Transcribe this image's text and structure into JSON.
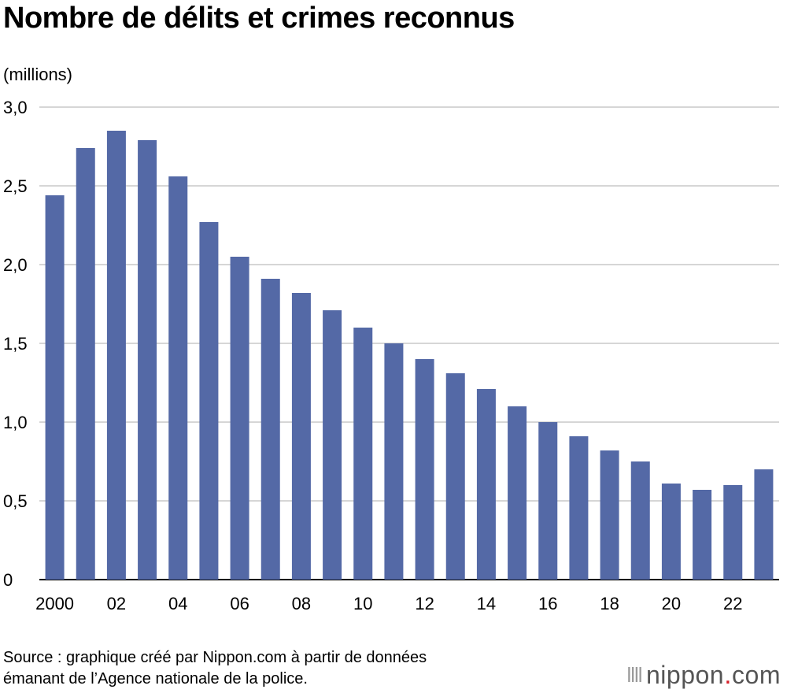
{
  "chart_data": {
    "type": "bar",
    "title": "Nombre de délits et crimes reconnus",
    "ylabel": "(millions)",
    "xlabel": "",
    "categories": [
      "2000",
      "2001",
      "2002",
      "2003",
      "2004",
      "2005",
      "2006",
      "2007",
      "2008",
      "2009",
      "2010",
      "2011",
      "2012",
      "2013",
      "2014",
      "2015",
      "2016",
      "2017",
      "2018",
      "2019",
      "2020",
      "2021",
      "2022",
      "2023"
    ],
    "tick_labels": {
      "2000": "2000",
      "2002": "02",
      "2004": "04",
      "2006": "06",
      "2008": "08",
      "2010": "10",
      "2012": "12",
      "2014": "14",
      "2016": "16",
      "2018": "18",
      "2020": "20",
      "2022": "22"
    },
    "values": [
      2.44,
      2.74,
      2.85,
      2.79,
      2.56,
      2.27,
      2.05,
      1.91,
      1.82,
      1.71,
      1.6,
      1.5,
      1.4,
      1.31,
      1.21,
      1.1,
      1.0,
      0.91,
      0.82,
      0.75,
      0.61,
      0.57,
      0.6,
      0.7
    ],
    "ylim": [
      0,
      3.0
    ],
    "yticks": [
      0,
      0.5,
      1.0,
      1.5,
      2.0,
      2.5,
      3.0
    ],
    "ytick_labels": [
      "0",
      "0,5",
      "1,0",
      "1,5",
      "2,0",
      "2,5",
      "3,0"
    ],
    "grid": true,
    "bar_color": "#5469a6",
    "grid_color": "#c8c8c8"
  },
  "source": {
    "line1": "Source : graphique créé par Nippon.com à partir de données",
    "line2": "émanant de l’Agence nationale de la police."
  },
  "brand": {
    "name": "nippon",
    "dot": ".",
    "suffix": "com",
    "dot_color": "#d7212a"
  }
}
